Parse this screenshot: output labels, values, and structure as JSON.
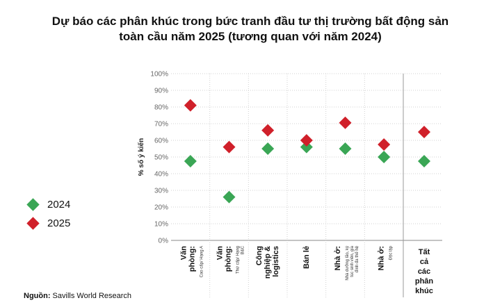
{
  "title_line1": "Dự báo các phân khúc trong bức tranh đầu tư thị trường bất động sản",
  "title_line2": "toàn cầu năm 2025 (tương quan với năm 2024)",
  "legend": [
    {
      "label": "2024",
      "color": "#3aa655"
    },
    {
      "label": "2025",
      "color": "#d0202a"
    }
  ],
  "source_label": "Nguồn:",
  "source_text": "Savills World Research",
  "colors": {
    "s2024": "#3aa655",
    "s2025": "#d0202a",
    "grid": "#bbbbbb"
  },
  "chart_data": {
    "type": "scatter",
    "ylabel": "% số ý kiến",
    "ylim": [
      0,
      100
    ],
    "yticks": [
      "0%",
      "10%",
      "20%",
      "30%",
      "40%",
      "50%",
      "60%",
      "70%",
      "80%",
      "90%",
      "100%"
    ],
    "categories": [
      {
        "main": [
          "Văn",
          "phòng:"
        ],
        "sub": [
          "Cao cấp/ Hạng A"
        ]
      },
      {
        "main": [
          "Văn",
          "phòng:"
        ],
        "sub": [
          "Thứ cấp/ Hạng",
          "B&C"
        ]
      },
      {
        "main": [
          "Công",
          "nghiệp &",
          "logistics"
        ],
        "sub": []
      },
      {
        "main": [
          "Bán lẻ"
        ],
        "sub": []
      },
      {
        "main": [
          "Nhà ở:"
        ],
        "sub": [
          "Nhà dưỡng lão, ký",
          "túc sinh viên, gia",
          "đình đa thế hệ"
        ]
      },
      {
        "main": [
          "Nhà ở:"
        ],
        "sub": [
          "Độc lập"
        ]
      },
      {
        "main": [
          "Tất",
          "cả",
          "các",
          "phân",
          "khúc"
        ],
        "sub": [],
        "horizontal": true
      }
    ],
    "series": [
      {
        "name": "2024",
        "values": [
          47.5,
          26,
          55,
          56,
          55,
          50,
          47.5
        ]
      },
      {
        "name": "2025",
        "values": [
          81,
          56,
          66,
          60,
          70.5,
          57.5,
          65
        ]
      }
    ]
  }
}
